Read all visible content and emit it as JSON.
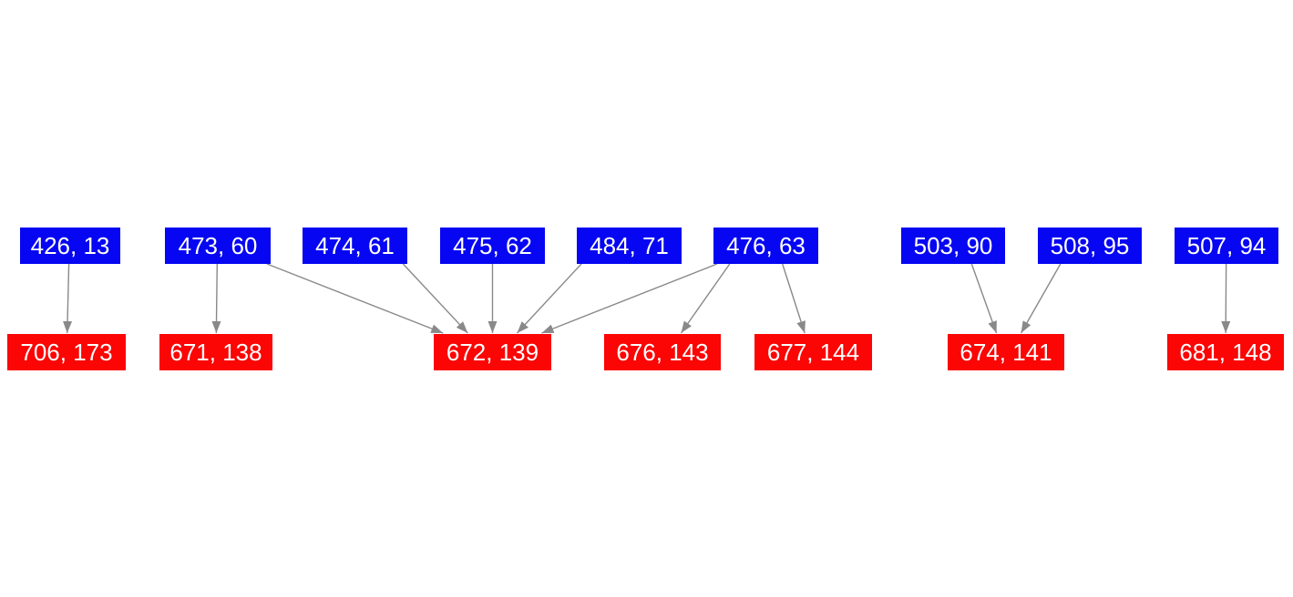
{
  "diagram": {
    "background_color": "#ffffff",
    "source_node_color": "#0606f2",
    "target_node_color": "#fb0505",
    "edge_color": "#898989",
    "node_text_color": "#ffffff",
    "nodes": [
      {
        "id": "b426",
        "label": "426, 13",
        "type": "source"
      },
      {
        "id": "b473",
        "label": "473, 60",
        "type": "source"
      },
      {
        "id": "b474",
        "label": "474, 61",
        "type": "source"
      },
      {
        "id": "b475",
        "label": "475, 62",
        "type": "source"
      },
      {
        "id": "b484",
        "label": "484, 71",
        "type": "source"
      },
      {
        "id": "b476",
        "label": "476, 63",
        "type": "source"
      },
      {
        "id": "b503",
        "label": "503, 90",
        "type": "source"
      },
      {
        "id": "b508",
        "label": "508, 95",
        "type": "source"
      },
      {
        "id": "b507",
        "label": "507, 94",
        "type": "source"
      },
      {
        "id": "r706",
        "label": "706, 173",
        "type": "target"
      },
      {
        "id": "r671",
        "label": "671, 138",
        "type": "target"
      },
      {
        "id": "r672",
        "label": "672, 139",
        "type": "target"
      },
      {
        "id": "r676",
        "label": "676, 143",
        "type": "target"
      },
      {
        "id": "r677",
        "label": "677, 144",
        "type": "target"
      },
      {
        "id": "r674",
        "label": "674, 141",
        "type": "target"
      },
      {
        "id": "r681",
        "label": "681, 148",
        "type": "target"
      }
    ],
    "edges": [
      {
        "from": "b426",
        "to": "r706"
      },
      {
        "from": "b473",
        "to": "r671"
      },
      {
        "from": "b473",
        "to": "r672"
      },
      {
        "from": "b474",
        "to": "r672"
      },
      {
        "from": "b475",
        "to": "r672"
      },
      {
        "from": "b484",
        "to": "r672"
      },
      {
        "from": "b476",
        "to": "r672"
      },
      {
        "from": "b476",
        "to": "r676"
      },
      {
        "from": "b476",
        "to": "r677"
      },
      {
        "from": "b503",
        "to": "r674"
      },
      {
        "from": "b508",
        "to": "r674"
      },
      {
        "from": "b507",
        "to": "r681"
      }
    ]
  }
}
